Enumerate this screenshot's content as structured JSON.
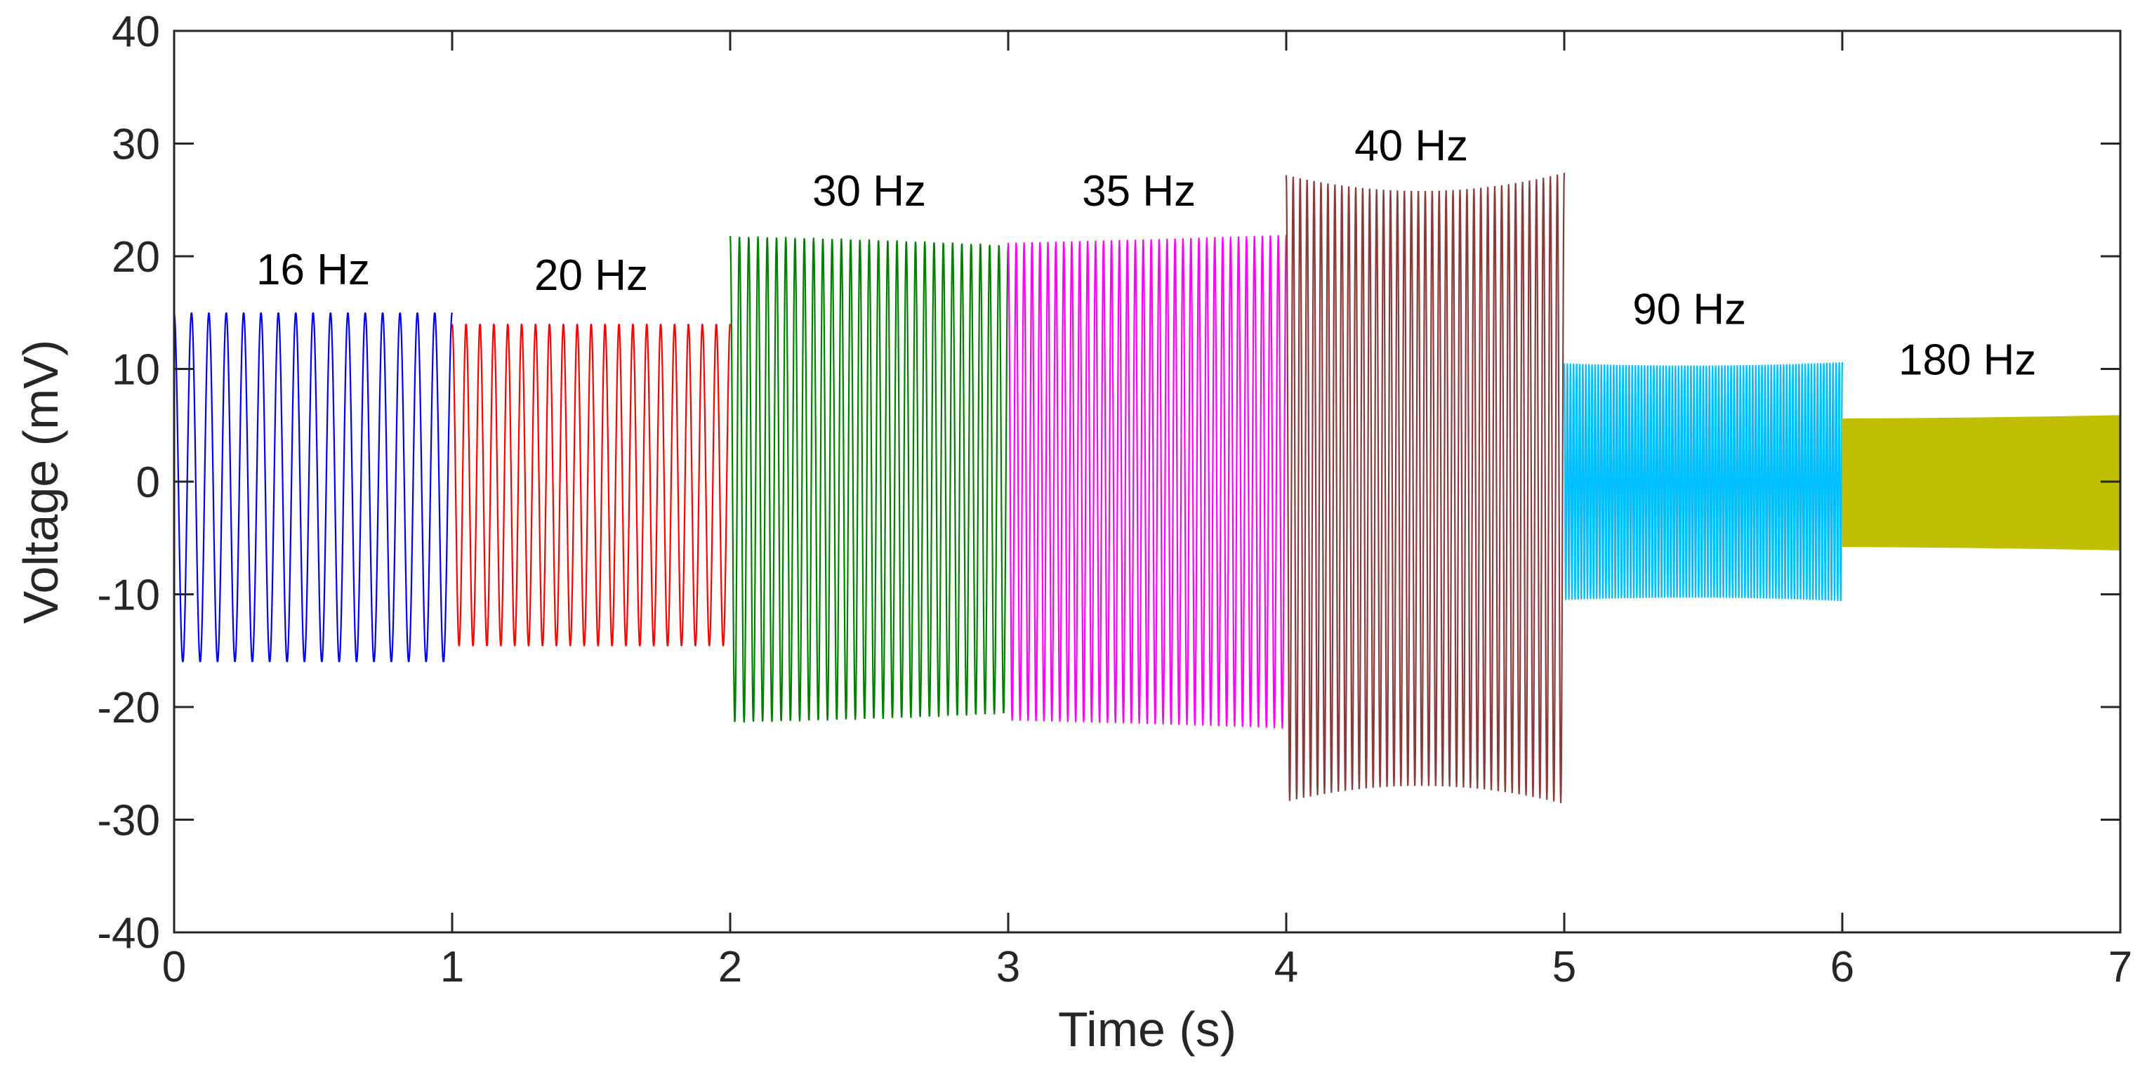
{
  "chart_data": {
    "type": "line",
    "title": "",
    "xlabel": "Time (s)",
    "ylabel": "Voltage (mV)",
    "xlim": [
      0,
      7
    ],
    "ylim": [
      -40,
      40
    ],
    "xticks": [
      0,
      1,
      2,
      3,
      4,
      5,
      6,
      7
    ],
    "yticks": [
      -40,
      -30,
      -20,
      -10,
      0,
      10,
      20,
      30,
      40
    ],
    "grid": false,
    "series": [
      {
        "name": "16 Hz",
        "label": "16 Hz",
        "label_x": 0.5,
        "label_y": 17.5,
        "color": "#0000ff",
        "t_start": 0,
        "t_end": 1,
        "freq_hz": 16,
        "amp_start": 15.5,
        "amp_mid": 15.5,
        "amp_end": 15.5,
        "offset": -0.5
      },
      {
        "name": "20 Hz",
        "label": "20 Hz",
        "label_x": 1.5,
        "label_y": 17.0,
        "color": "#ff0000",
        "t_start": 1,
        "t_end": 2,
        "freq_hz": 20,
        "amp_start": 14.3,
        "amp_mid": 14.3,
        "amp_end": 14.3,
        "offset": -0.3
      },
      {
        "name": "30 Hz",
        "label": "30 Hz",
        "label_x": 2.5,
        "label_y": 24.5,
        "color": "#008000",
        "t_start": 2,
        "t_end": 3,
        "freq_hz": 30,
        "amp_start": 21.6,
        "amp_mid": 21.3,
        "amp_end": 20.8,
        "offset": 0.2
      },
      {
        "name": "35 Hz",
        "label": "35 Hz",
        "label_x": 3.47,
        "label_y": 24.5,
        "color": "#ff00ff",
        "t_start": 3,
        "t_end": 4,
        "freq_hz": 35,
        "amp_start": 21.2,
        "amp_mid": 21.5,
        "amp_end": 21.9,
        "offset": 0.0
      },
      {
        "name": "40 Hz",
        "label": "40 Hz",
        "label_x": 4.45,
        "label_y": 28.5,
        "color": "#8b3a3a",
        "t_start": 4,
        "t_end": 5,
        "freq_hz": 40,
        "amp_start": 27.8,
        "amp_mid": 26.4,
        "amp_end": 28.0,
        "offset": -0.6
      },
      {
        "name": "90 Hz",
        "label": "90 Hz",
        "label_x": 5.45,
        "label_y": 14.0,
        "color": "#00bfff",
        "t_start": 5,
        "t_end": 6,
        "freq_hz": 90,
        "amp_start": 10.5,
        "amp_mid": 10.3,
        "amp_end": 10.6,
        "offset": 0.0
      },
      {
        "name": "180 Hz",
        "label": "180 Hz",
        "label_x": 6.45,
        "label_y": 9.5,
        "color": "#bfbf00",
        "t_start": 6,
        "t_end": 7,
        "freq_hz": 180,
        "amp_start": 5.7,
        "amp_mid": 5.8,
        "amp_end": 6.0,
        "offset": -0.1
      }
    ]
  }
}
